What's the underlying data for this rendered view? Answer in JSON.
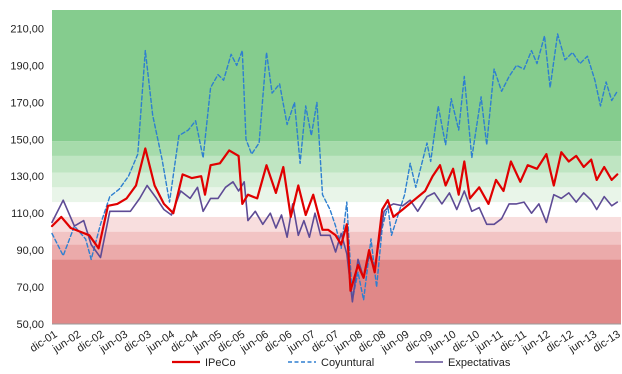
{
  "chart_data": {
    "type": "line",
    "title": "",
    "xlabel": "",
    "ylabel": "",
    "ylim": [
      50,
      220
    ],
    "y_ticks": [
      "50,00",
      "70,00",
      "90,00",
      "110,00",
      "130,00",
      "150,00",
      "170,00",
      "190,00",
      "210,00"
    ],
    "x_ticks": [
      "dic-01",
      "jun-02",
      "dic-02",
      "jun-03",
      "dic-03",
      "jun-04",
      "dic-04",
      "jun-05",
      "dic-05",
      "jun-06",
      "dic-06",
      "jun-07",
      "dic-07",
      "jun-08",
      "dic-08",
      "jun-09",
      "dic-09",
      "jun-10",
      "dic-10",
      "jun-11",
      "dic-11",
      "jun-12",
      "dic-12",
      "jun-13",
      "dic-13"
    ],
    "legend_position": "bottom",
    "grid": false,
    "background_bands": [
      {
        "from": 50,
        "to": 85,
        "color": "#e08888"
      },
      {
        "from": 85,
        "to": 93,
        "color": "#ebaaaa"
      },
      {
        "from": 93,
        "to": 100,
        "color": "#f2c4c4"
      },
      {
        "from": 100,
        "to": 108,
        "color": "#f8dede"
      },
      {
        "from": 108,
        "to": 116,
        "color": "#ffffff"
      },
      {
        "from": 116,
        "to": 124,
        "color": "#e9f5e9"
      },
      {
        "from": 124,
        "to": 132,
        "color": "#d6eed7"
      },
      {
        "from": 132,
        "to": 141,
        "color": "#bfe5c2"
      },
      {
        "from": 141,
        "to": 149,
        "color": "#a6dbab"
      },
      {
        "from": 149,
        "to": 220,
        "color": "#85cc8e"
      }
    ],
    "series": [
      {
        "name": "IPeCo",
        "color": "#e00000",
        "dash": "solid",
        "width": 2.2,
        "points": [
          {
            "x": 2002.0,
            "y": 103
          },
          {
            "x": 2002.25,
            "y": 108
          },
          {
            "x": 2002.5,
            "y": 102
          },
          {
            "x": 2002.75,
            "y": 100
          },
          {
            "x": 2003.0,
            "y": 98
          },
          {
            "x": 2003.25,
            "y": 91
          },
          {
            "x": 2003.5,
            "y": 114
          },
          {
            "x": 2003.75,
            "y": 115
          },
          {
            "x": 2004.0,
            "y": 118
          },
          {
            "x": 2004.25,
            "y": 125
          },
          {
            "x": 2004.5,
            "y": 145
          },
          {
            "x": 2004.75,
            "y": 125
          },
          {
            "x": 2005.0,
            "y": 115
          },
          {
            "x": 2005.25,
            "y": 110
          },
          {
            "x": 2005.5,
            "y": 131
          },
          {
            "x": 2005.75,
            "y": 129
          },
          {
            "x": 2006.0,
            "y": 130
          },
          {
            "x": 2006.1,
            "y": 120
          },
          {
            "x": 2006.25,
            "y": 136
          },
          {
            "x": 2006.5,
            "y": 137
          },
          {
            "x": 2006.75,
            "y": 144
          },
          {
            "x": 2007.0,
            "y": 141
          },
          {
            "x": 2007.1,
            "y": 115
          },
          {
            "x": 2007.25,
            "y": 120
          },
          {
            "x": 2007.5,
            "y": 118
          },
          {
            "x": 2007.75,
            "y": 136
          },
          {
            "x": 2008.0,
            "y": 121
          },
          {
            "x": 2008.2,
            "y": 135
          },
          {
            "x": 2008.4,
            "y": 108
          },
          {
            "x": 2008.6,
            "y": 125
          },
          {
            "x": 2008.8,
            "y": 109
          },
          {
            "x": 2009.0,
            "y": 120
          },
          {
            "x": 2009.25,
            "y": 101
          },
          {
            "x": 2009.4,
            "y": 101
          },
          {
            "x": 2009.6,
            "y": 98
          },
          {
            "x": 2009.75,
            "y": 93
          },
          {
            "x": 2009.9,
            "y": 104
          },
          {
            "x": 2010.0,
            "y": 68
          },
          {
            "x": 2010.2,
            "y": 82
          },
          {
            "x": 2010.35,
            "y": 75
          },
          {
            "x": 2010.5,
            "y": 90
          },
          {
            "x": 2010.65,
            "y": 78
          },
          {
            "x": 2010.85,
            "y": 112
          },
          {
            "x": 2011.0,
            "y": 117
          },
          {
            "x": 2011.15,
            "y": 108
          },
          {
            "x": 2011.4,
            "y": 112
          },
          {
            "x": 2011.7,
            "y": 117
          },
          {
            "x": 2012.0,
            "y": 122
          },
          {
            "x": 2012.2,
            "y": 130
          },
          {
            "x": 2012.4,
            "y": 136
          },
          {
            "x": 2012.55,
            "y": 125
          },
          {
            "x": 2012.75,
            "y": 134
          },
          {
            "x": 2012.9,
            "y": 120
          },
          {
            "x": 2013.05,
            "y": 138
          },
          {
            "x": 2013.2,
            "y": 118
          },
          {
            "x": 2013.45,
            "y": 124
          },
          {
            "x": 2013.7,
            "y": 115
          },
          {
            "x": 2013.9,
            "y": 128
          },
          {
            "x": 2014.1,
            "y": 122
          },
          {
            "x": 2014.3,
            "y": 138
          },
          {
            "x": 2014.55,
            "y": 127
          },
          {
            "x": 2014.75,
            "y": 136
          },
          {
            "x": 2015.0,
            "y": 134
          },
          {
            "x": 2015.25,
            "y": 142
          },
          {
            "x": 2015.45,
            "y": 125
          },
          {
            "x": 2015.65,
            "y": 143
          },
          {
            "x": 2015.85,
            "y": 138
          },
          {
            "x": 2016.05,
            "y": 141
          },
          {
            "x": 2016.25,
            "y": 135
          },
          {
            "x": 2016.45,
            "y": 139
          },
          {
            "x": 2016.6,
            "y": 128
          },
          {
            "x": 2016.8,
            "y": 135
          },
          {
            "x": 2017.0,
            "y": 128
          },
          {
            "x": 2017.15,
            "y": 131
          }
        ]
      },
      {
        "name": "Coyuntural",
        "color": "#2e7fd0",
        "dash": "dashed",
        "width": 1.4,
        "points": [
          {
            "x": 2002.0,
            "y": 99
          },
          {
            "x": 2002.3,
            "y": 87
          },
          {
            "x": 2002.6,
            "y": 103
          },
          {
            "x": 2002.9,
            "y": 96
          },
          {
            "x": 2003.05,
            "y": 85
          },
          {
            "x": 2003.3,
            "y": 104
          },
          {
            "x": 2003.55,
            "y": 119
          },
          {
            "x": 2003.8,
            "y": 123
          },
          {
            "x": 2004.05,
            "y": 130
          },
          {
            "x": 2004.3,
            "y": 142
          },
          {
            "x": 2004.5,
            "y": 198
          },
          {
            "x": 2004.7,
            "y": 163
          },
          {
            "x": 2004.95,
            "y": 139
          },
          {
            "x": 2005.15,
            "y": 116
          },
          {
            "x": 2005.4,
            "y": 152
          },
          {
            "x": 2005.65,
            "y": 155
          },
          {
            "x": 2005.85,
            "y": 160
          },
          {
            "x": 2006.05,
            "y": 140
          },
          {
            "x": 2006.25,
            "y": 178
          },
          {
            "x": 2006.45,
            "y": 185
          },
          {
            "x": 2006.6,
            "y": 182
          },
          {
            "x": 2006.8,
            "y": 196
          },
          {
            "x": 2006.95,
            "y": 190
          },
          {
            "x": 2007.1,
            "y": 198
          },
          {
            "x": 2007.2,
            "y": 150
          },
          {
            "x": 2007.35,
            "y": 142
          },
          {
            "x": 2007.55,
            "y": 148
          },
          {
            "x": 2007.75,
            "y": 197
          },
          {
            "x": 2007.9,
            "y": 175
          },
          {
            "x": 2008.1,
            "y": 180
          },
          {
            "x": 2008.3,
            "y": 158
          },
          {
            "x": 2008.5,
            "y": 170
          },
          {
            "x": 2008.65,
            "y": 137
          },
          {
            "x": 2008.8,
            "y": 168
          },
          {
            "x": 2008.95,
            "y": 152
          },
          {
            "x": 2009.1,
            "y": 170
          },
          {
            "x": 2009.25,
            "y": 120
          },
          {
            "x": 2009.45,
            "y": 112
          },
          {
            "x": 2009.6,
            "y": 103
          },
          {
            "x": 2009.75,
            "y": 91
          },
          {
            "x": 2009.9,
            "y": 116
          },
          {
            "x": 2010.05,
            "y": 63
          },
          {
            "x": 2010.2,
            "y": 78
          },
          {
            "x": 2010.35,
            "y": 63
          },
          {
            "x": 2010.55,
            "y": 96
          },
          {
            "x": 2010.7,
            "y": 70
          },
          {
            "x": 2010.85,
            "y": 102
          },
          {
            "x": 2011.0,
            "y": 114
          },
          {
            "x": 2011.1,
            "y": 98
          },
          {
            "x": 2011.45,
            "y": 120
          },
          {
            "x": 2011.6,
            "y": 137
          },
          {
            "x": 2011.75,
            "y": 124
          },
          {
            "x": 2012.05,
            "y": 148
          },
          {
            "x": 2012.15,
            "y": 138
          },
          {
            "x": 2012.35,
            "y": 168
          },
          {
            "x": 2012.55,
            "y": 147
          },
          {
            "x": 2012.7,
            "y": 172
          },
          {
            "x": 2012.9,
            "y": 155
          },
          {
            "x": 2013.05,
            "y": 184
          },
          {
            "x": 2013.25,
            "y": 140
          },
          {
            "x": 2013.5,
            "y": 173
          },
          {
            "x": 2013.65,
            "y": 147
          },
          {
            "x": 2013.85,
            "y": 188
          },
          {
            "x": 2014.05,
            "y": 176
          },
          {
            "x": 2014.25,
            "y": 184
          },
          {
            "x": 2014.45,
            "y": 190
          },
          {
            "x": 2014.65,
            "y": 188
          },
          {
            "x": 2014.85,
            "y": 198
          },
          {
            "x": 2015.0,
            "y": 191
          },
          {
            "x": 2015.2,
            "y": 206
          },
          {
            "x": 2015.35,
            "y": 178
          },
          {
            "x": 2015.55,
            "y": 207
          },
          {
            "x": 2015.75,
            "y": 193
          },
          {
            "x": 2015.95,
            "y": 197
          },
          {
            "x": 2016.15,
            "y": 191
          },
          {
            "x": 2016.35,
            "y": 195
          },
          {
            "x": 2016.55,
            "y": 182
          },
          {
            "x": 2016.7,
            "y": 168
          },
          {
            "x": 2016.85,
            "y": 181
          },
          {
            "x": 2017.0,
            "y": 171
          },
          {
            "x": 2017.15,
            "y": 176
          }
        ]
      },
      {
        "name": "Expectativas",
        "color": "#5e4b95",
        "dash": "solid",
        "width": 1.6,
        "points": [
          {
            "x": 2002.0,
            "y": 105
          },
          {
            "x": 2002.3,
            "y": 117
          },
          {
            "x": 2002.6,
            "y": 103
          },
          {
            "x": 2002.85,
            "y": 106
          },
          {
            "x": 2003.05,
            "y": 93
          },
          {
            "x": 2003.3,
            "y": 86
          },
          {
            "x": 2003.55,
            "y": 111
          },
          {
            "x": 2003.8,
            "y": 111
          },
          {
            "x": 2004.1,
            "y": 111
          },
          {
            "x": 2004.35,
            "y": 118
          },
          {
            "x": 2004.55,
            "y": 125
          },
          {
            "x": 2004.8,
            "y": 118
          },
          {
            "x": 2005.0,
            "y": 112
          },
          {
            "x": 2005.2,
            "y": 109
          },
          {
            "x": 2005.45,
            "y": 122
          },
          {
            "x": 2005.7,
            "y": 118
          },
          {
            "x": 2005.9,
            "y": 124
          },
          {
            "x": 2006.05,
            "y": 111
          },
          {
            "x": 2006.25,
            "y": 118
          },
          {
            "x": 2006.45,
            "y": 118
          },
          {
            "x": 2006.65,
            "y": 124
          },
          {
            "x": 2006.85,
            "y": 127
          },
          {
            "x": 2007.0,
            "y": 122
          },
          {
            "x": 2007.15,
            "y": 127
          },
          {
            "x": 2007.25,
            "y": 106
          },
          {
            "x": 2007.45,
            "y": 111
          },
          {
            "x": 2007.65,
            "y": 104
          },
          {
            "x": 2007.85,
            "y": 110
          },
          {
            "x": 2008.0,
            "y": 102
          },
          {
            "x": 2008.15,
            "y": 109
          },
          {
            "x": 2008.3,
            "y": 97
          },
          {
            "x": 2008.45,
            "y": 115
          },
          {
            "x": 2008.6,
            "y": 98
          },
          {
            "x": 2008.75,
            "y": 106
          },
          {
            "x": 2008.9,
            "y": 97
          },
          {
            "x": 2009.05,
            "y": 110
          },
          {
            "x": 2009.2,
            "y": 98
          },
          {
            "x": 2009.45,
            "y": 98
          },
          {
            "x": 2009.6,
            "y": 89
          },
          {
            "x": 2009.75,
            "y": 99
          },
          {
            "x": 2009.9,
            "y": 88
          },
          {
            "x": 2010.05,
            "y": 62
          },
          {
            "x": 2010.2,
            "y": 85
          },
          {
            "x": 2010.35,
            "y": 75
          },
          {
            "x": 2010.5,
            "y": 87
          },
          {
            "x": 2010.65,
            "y": 80
          },
          {
            "x": 2010.9,
            "y": 111
          },
          {
            "x": 2011.05,
            "y": 114
          },
          {
            "x": 2011.15,
            "y": 115
          },
          {
            "x": 2011.4,
            "y": 114
          },
          {
            "x": 2011.6,
            "y": 117
          },
          {
            "x": 2011.8,
            "y": 111
          },
          {
            "x": 2012.05,
            "y": 119
          },
          {
            "x": 2012.25,
            "y": 121
          },
          {
            "x": 2012.45,
            "y": 115
          },
          {
            "x": 2012.65,
            "y": 121
          },
          {
            "x": 2012.85,
            "y": 112
          },
          {
            "x": 2013.05,
            "y": 122
          },
          {
            "x": 2013.25,
            "y": 111
          },
          {
            "x": 2013.45,
            "y": 113
          },
          {
            "x": 2013.65,
            "y": 104
          },
          {
            "x": 2013.85,
            "y": 104
          },
          {
            "x": 2014.05,
            "y": 107
          },
          {
            "x": 2014.25,
            "y": 115
          },
          {
            "x": 2014.45,
            "y": 115
          },
          {
            "x": 2014.65,
            "y": 116
          },
          {
            "x": 2014.85,
            "y": 110
          },
          {
            "x": 2015.05,
            "y": 115
          },
          {
            "x": 2015.25,
            "y": 105
          },
          {
            "x": 2015.45,
            "y": 120
          },
          {
            "x": 2015.65,
            "y": 118
          },
          {
            "x": 2015.85,
            "y": 121
          },
          {
            "x": 2016.05,
            "y": 116
          },
          {
            "x": 2016.25,
            "y": 121
          },
          {
            "x": 2016.45,
            "y": 117
          },
          {
            "x": 2016.6,
            "y": 112
          },
          {
            "x": 2016.8,
            "y": 119
          },
          {
            "x": 2017.0,
            "y": 114
          },
          {
            "x": 2017.15,
            "y": 116
          }
        ]
      }
    ]
  }
}
